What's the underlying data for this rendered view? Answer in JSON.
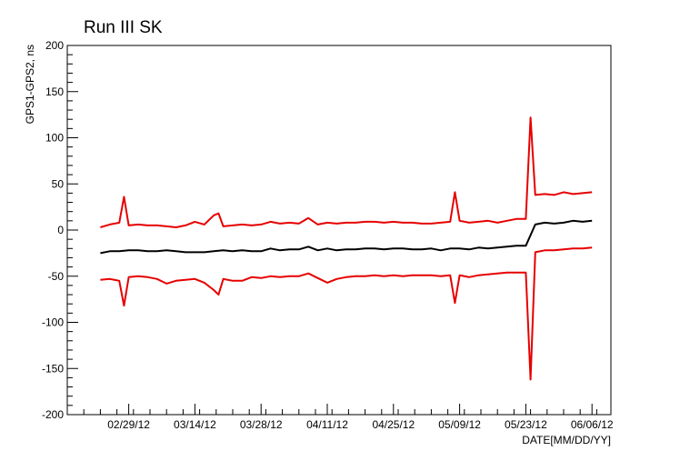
{
  "chart_data": {
    "type": "line",
    "title": "Run III SK",
    "xlabel": "DATE[MM/DD/YY]",
    "ylabel": "GPS1-GPS2, ns",
    "ylim": [
      -200,
      200
    ],
    "xlim": [
      "2012-02-16",
      "2012-06-10"
    ],
    "grid": false,
    "y_ticks": [
      -200,
      -150,
      -100,
      -50,
      0,
      50,
      100,
      150,
      200
    ],
    "x_ticks": [
      {
        "date": "2012-02-29",
        "label": "02/29/12"
      },
      {
        "date": "2012-03-14",
        "label": "03/14/12"
      },
      {
        "date": "2012-03-28",
        "label": "03/28/12"
      },
      {
        "date": "2012-04-11",
        "label": "04/11/12"
      },
      {
        "date": "2012-04-25",
        "label": "04/25/12"
      },
      {
        "date": "2012-05-09",
        "label": "05/09/12"
      },
      {
        "date": "2012-05-23",
        "label": "05/23/12"
      },
      {
        "date": "2012-06-06",
        "label": "06/06/12"
      }
    ],
    "series": [
      {
        "color": "#000000",
        "points": [
          [
            "2012-02-23",
            -25
          ],
          [
            "2012-02-25",
            -23
          ],
          [
            "2012-02-27",
            -23
          ],
          [
            "2012-02-29",
            -22
          ],
          [
            "2012-03-02",
            -22
          ],
          [
            "2012-03-04",
            -23
          ],
          [
            "2012-03-06",
            -23
          ],
          [
            "2012-03-08",
            -22
          ],
          [
            "2012-03-10",
            -23
          ],
          [
            "2012-03-12",
            -24
          ],
          [
            "2012-03-14",
            -24
          ],
          [
            "2012-03-16",
            -24
          ],
          [
            "2012-03-18",
            -23
          ],
          [
            "2012-03-20",
            -22
          ],
          [
            "2012-03-22",
            -23
          ],
          [
            "2012-03-24",
            -22
          ],
          [
            "2012-03-26",
            -23
          ],
          [
            "2012-03-28",
            -23
          ],
          [
            "2012-03-30",
            -20
          ],
          [
            "2012-04-01",
            -22
          ],
          [
            "2012-04-03",
            -21
          ],
          [
            "2012-04-05",
            -21
          ],
          [
            "2012-04-07",
            -18
          ],
          [
            "2012-04-09",
            -22
          ],
          [
            "2012-04-11",
            -20
          ],
          [
            "2012-04-13",
            -22
          ],
          [
            "2012-04-15",
            -21
          ],
          [
            "2012-04-17",
            -21
          ],
          [
            "2012-04-19",
            -20
          ],
          [
            "2012-04-21",
            -20
          ],
          [
            "2012-04-23",
            -21
          ],
          [
            "2012-04-25",
            -20
          ],
          [
            "2012-04-27",
            -20
          ],
          [
            "2012-04-29",
            -21
          ],
          [
            "2012-05-01",
            -21
          ],
          [
            "2012-05-03",
            -20
          ],
          [
            "2012-05-05",
            -22
          ],
          [
            "2012-05-07",
            -20
          ],
          [
            "2012-05-09",
            -20
          ],
          [
            "2012-05-11",
            -21
          ],
          [
            "2012-05-13",
            -19
          ],
          [
            "2012-05-15",
            -20
          ],
          [
            "2012-05-17",
            -19
          ],
          [
            "2012-05-19",
            -18
          ],
          [
            "2012-05-21",
            -17
          ],
          [
            "2012-05-23",
            -17
          ],
          [
            "2012-05-25",
            6
          ],
          [
            "2012-05-27",
            8
          ],
          [
            "2012-05-29",
            7
          ],
          [
            "2012-05-31",
            8
          ],
          [
            "2012-06-02",
            10
          ],
          [
            "2012-06-04",
            9
          ],
          [
            "2012-06-06",
            10
          ]
        ]
      },
      {
        "color": "#e60000",
        "points": [
          [
            "2012-02-23",
            3
          ],
          [
            "2012-02-25",
            6
          ],
          [
            "2012-02-27",
            8
          ],
          [
            "2012-02-28",
            36
          ],
          [
            "2012-02-29",
            5
          ],
          [
            "2012-03-02",
            6
          ],
          [
            "2012-03-04",
            5
          ],
          [
            "2012-03-06",
            5
          ],
          [
            "2012-03-08",
            4
          ],
          [
            "2012-03-10",
            3
          ],
          [
            "2012-03-12",
            5
          ],
          [
            "2012-03-14",
            9
          ],
          [
            "2012-03-16",
            6
          ],
          [
            "2012-03-18",
            16
          ],
          [
            "2012-03-19",
            18
          ],
          [
            "2012-03-20",
            4
          ],
          [
            "2012-03-22",
            5
          ],
          [
            "2012-03-24",
            6
          ],
          [
            "2012-03-26",
            5
          ],
          [
            "2012-03-28",
            6
          ],
          [
            "2012-03-30",
            9
          ],
          [
            "2012-04-01",
            7
          ],
          [
            "2012-04-03",
            8
          ],
          [
            "2012-04-05",
            7
          ],
          [
            "2012-04-07",
            13
          ],
          [
            "2012-04-09",
            6
          ],
          [
            "2012-04-11",
            8
          ],
          [
            "2012-04-13",
            7
          ],
          [
            "2012-04-15",
            8
          ],
          [
            "2012-04-17",
            8
          ],
          [
            "2012-04-19",
            9
          ],
          [
            "2012-04-21",
            9
          ],
          [
            "2012-04-23",
            8
          ],
          [
            "2012-04-25",
            9
          ],
          [
            "2012-04-27",
            8
          ],
          [
            "2012-04-29",
            8
          ],
          [
            "2012-05-01",
            7
          ],
          [
            "2012-05-03",
            7
          ],
          [
            "2012-05-05",
            8
          ],
          [
            "2012-05-07",
            9
          ],
          [
            "2012-05-08",
            41
          ],
          [
            "2012-05-09",
            10
          ],
          [
            "2012-05-11",
            8
          ],
          [
            "2012-05-13",
            9
          ],
          [
            "2012-05-15",
            10
          ],
          [
            "2012-05-17",
            8
          ],
          [
            "2012-05-19",
            10
          ],
          [
            "2012-05-21",
            12
          ],
          [
            "2012-05-23",
            12
          ],
          [
            "2012-05-24",
            122
          ],
          [
            "2012-05-25",
            38
          ],
          [
            "2012-05-27",
            39
          ],
          [
            "2012-05-29",
            38
          ],
          [
            "2012-05-31",
            41
          ],
          [
            "2012-06-02",
            39
          ],
          [
            "2012-06-04",
            40
          ],
          [
            "2012-06-06",
            41
          ]
        ]
      },
      {
        "color": "#e60000",
        "points": [
          [
            "2012-02-23",
            -54
          ],
          [
            "2012-02-25",
            -53
          ],
          [
            "2012-02-27",
            -55
          ],
          [
            "2012-02-28",
            -82
          ],
          [
            "2012-02-29",
            -51
          ],
          [
            "2012-03-02",
            -50
          ],
          [
            "2012-03-04",
            -51
          ],
          [
            "2012-03-06",
            -53
          ],
          [
            "2012-03-08",
            -58
          ],
          [
            "2012-03-10",
            -55
          ],
          [
            "2012-03-12",
            -54
          ],
          [
            "2012-03-14",
            -53
          ],
          [
            "2012-03-16",
            -57
          ],
          [
            "2012-03-18",
            -65
          ],
          [
            "2012-03-19",
            -70
          ],
          [
            "2012-03-20",
            -53
          ],
          [
            "2012-03-22",
            -55
          ],
          [
            "2012-03-24",
            -55
          ],
          [
            "2012-03-26",
            -51
          ],
          [
            "2012-03-28",
            -52
          ],
          [
            "2012-03-30",
            -50
          ],
          [
            "2012-04-01",
            -51
          ],
          [
            "2012-04-03",
            -50
          ],
          [
            "2012-04-05",
            -50
          ],
          [
            "2012-04-07",
            -47
          ],
          [
            "2012-04-09",
            -52
          ],
          [
            "2012-04-11",
            -57
          ],
          [
            "2012-04-13",
            -53
          ],
          [
            "2012-04-15",
            -51
          ],
          [
            "2012-04-17",
            -50
          ],
          [
            "2012-04-19",
            -50
          ],
          [
            "2012-04-21",
            -49
          ],
          [
            "2012-04-23",
            -50
          ],
          [
            "2012-04-25",
            -49
          ],
          [
            "2012-04-27",
            -50
          ],
          [
            "2012-04-29",
            -49
          ],
          [
            "2012-05-01",
            -49
          ],
          [
            "2012-05-03",
            -49
          ],
          [
            "2012-05-05",
            -50
          ],
          [
            "2012-05-07",
            -49
          ],
          [
            "2012-05-08",
            -79
          ],
          [
            "2012-05-09",
            -49
          ],
          [
            "2012-05-11",
            -51
          ],
          [
            "2012-05-13",
            -49
          ],
          [
            "2012-05-15",
            -48
          ],
          [
            "2012-05-17",
            -47
          ],
          [
            "2012-05-19",
            -46
          ],
          [
            "2012-05-21",
            -46
          ],
          [
            "2012-05-23",
            -46
          ],
          [
            "2012-05-24",
            -162
          ],
          [
            "2012-05-25",
            -24
          ],
          [
            "2012-05-27",
            -22
          ],
          [
            "2012-05-29",
            -22
          ],
          [
            "2012-05-31",
            -21
          ],
          [
            "2012-06-02",
            -20
          ],
          [
            "2012-06-04",
            -20
          ],
          [
            "2012-06-06",
            -19
          ]
        ]
      }
    ]
  }
}
